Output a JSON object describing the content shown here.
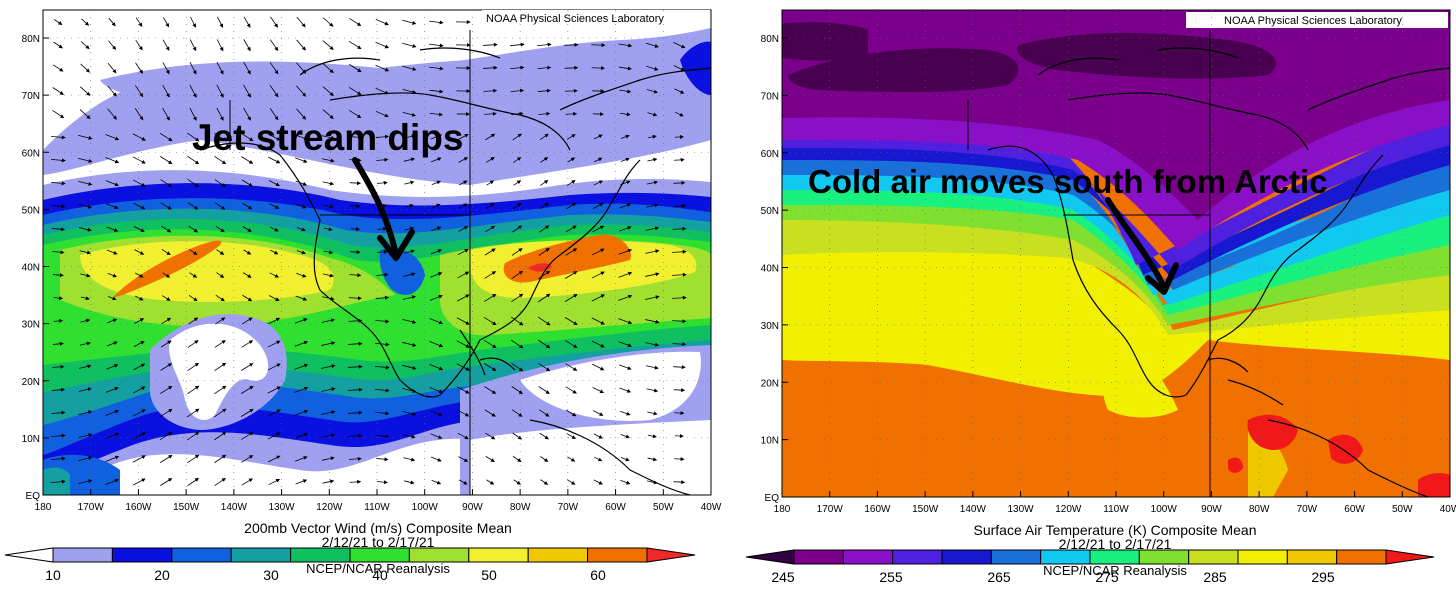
{
  "panels": [
    {
      "credit": "NOAA Physical Sciences Laboratory",
      "annotation": "Jet stream dips",
      "title": "200mb Vector Wind (m/s) Composite Mean",
      "dates": "2/12/21  to 2/17/21",
      "source": "NCEP/NCAR Reanalysis",
      "lat_labels": [
        "80N",
        "70N",
        "60N",
        "50N",
        "40N",
        "30N",
        "20N",
        "10N",
        "EQ"
      ],
      "lon_labels": [
        "180",
        "170W",
        "160W",
        "150W",
        "140W",
        "130W",
        "120W",
        "110W",
        "100W",
        "90W",
        "80W",
        "70W",
        "60W",
        "50W",
        "40W"
      ],
      "colorbar_ticks": [
        "10",
        "20",
        "30",
        "40",
        "50",
        "60"
      ],
      "colorbar_colors": [
        "#ffffff",
        "#a0a0f0",
        "#0a10e0",
        "#1060e0",
        "#14a0a0",
        "#10c060",
        "#30e030",
        "#a0e030",
        "#f0f030",
        "#f0c800",
        "#f07000",
        "#f02828"
      ]
    },
    {
      "credit": "NOAA Physical Sciences Laboratory",
      "annotation": "Cold air moves south from Arctic",
      "title": "Surface Air Temperature (K) Composite Mean",
      "dates": "2/12/21  to 2/17/21",
      "source": "NCEP/NCAR Reanalysis",
      "lat_labels": [
        "80N",
        "70N",
        "60N",
        "50N",
        "40N",
        "30N",
        "20N",
        "10N",
        "EQ"
      ],
      "lon_labels": [
        "180",
        "170W",
        "160W",
        "150W",
        "140W",
        "130W",
        "120W",
        "110W",
        "100W",
        "90W",
        "80W",
        "70W",
        "60W",
        "50W",
        "40W"
      ],
      "colorbar_ticks": [
        "245",
        "255",
        "265",
        "275",
        "285",
        "295"
      ],
      "colorbar_colors": [
        "#300040",
        "#7a008c",
        "#8a10c8",
        "#5020e0",
        "#1818d0",
        "#1870d8",
        "#10c8f0",
        "#18f080",
        "#80e030",
        "#c8e020",
        "#f0f000",
        "#f0c800",
        "#f07000",
        "#f01818"
      ]
    }
  ]
}
